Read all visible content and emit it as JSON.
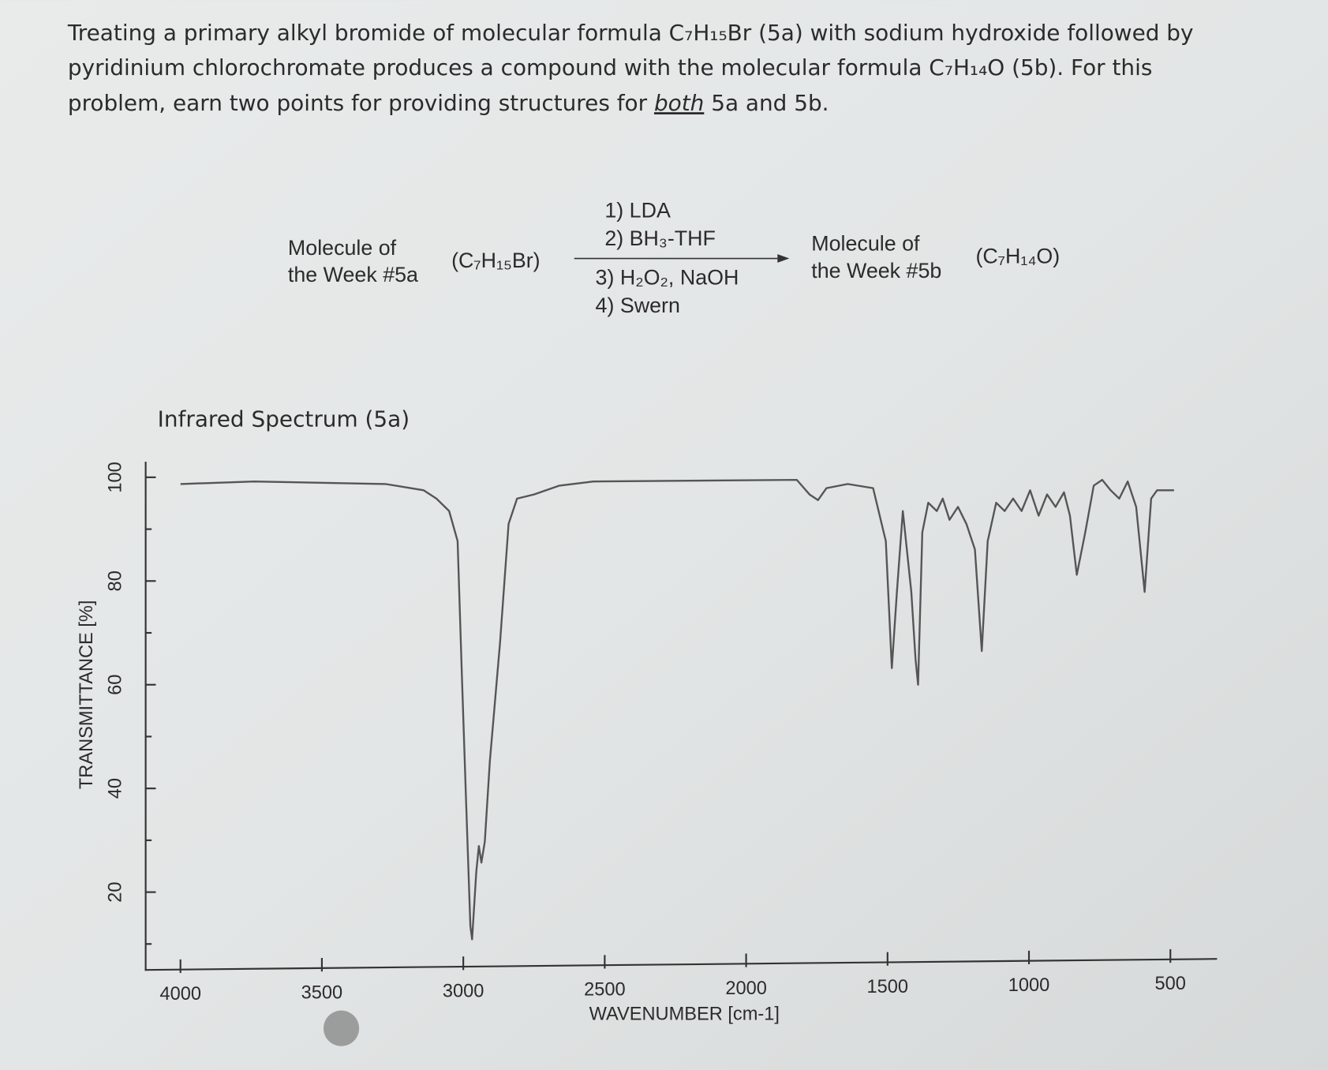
{
  "question": {
    "lines": [
      "Treating a primary alkyl bromide of molecular formula C₇H₁₅Br (5a) with sodium hydroxide followed by",
      "pyridinium chlorochromate produces a compound with the molecular formula C₇H₁₄O (5b). For this"
    ],
    "last_line": [
      "problem, earn two points for providing structures for ",
      "both",
      " 5a and 5b."
    ]
  },
  "scheme": {
    "start_name": [
      "Molecule of",
      "the Week #5a"
    ],
    "start_formula": "(C₇H₁₅Br)",
    "reagents_above": [
      "1) LDA",
      "2) BH₃-THF"
    ],
    "reagents_below": [
      "3) H₂O₂, NaOH",
      "4) Swern"
    ],
    "product_name": [
      "Molecule of",
      "the Week #5b"
    ],
    "product_formula": "(C₇H₁₄O)"
  },
  "chart_data": {
    "type": "line",
    "title": "Infrared Spectrum (5a)",
    "x_label": "WAVENUMBER [cm-1]",
    "y_label": "TRANSMITTANCE [%]",
    "xlim": [
      4123,
      335
    ],
    "ylim": [
      5,
      103
    ],
    "xticks": [
      4000,
      3500,
      3000,
      2500,
      2000,
      1500,
      1000,
      500
    ],
    "yticks": [
      20,
      40,
      60,
      80,
      100
    ],
    "yticks_minor": [
      10,
      30,
      50,
      70,
      90
    ],
    "x": [
      4000,
      3739,
      3275,
      3140,
      3095,
      3050,
      3020,
      3005,
      2990,
      2975,
      2969,
      2954,
      2945,
      2936,
      2924,
      2906,
      2870,
      2840,
      2810,
      2750,
      2660,
      2540,
      1821,
      1776,
      1746,
      1716,
      1641,
      1551,
      1506,
      1485,
      1467,
      1446,
      1416,
      1401,
      1392,
      1377,
      1356,
      1326,
      1305,
      1281,
      1251,
      1221,
      1191,
      1167,
      1146,
      1116,
      1086,
      1056,
      1026,
      996,
      966,
      936,
      906,
      876,
      855,
      831,
      801,
      771,
      741,
      711,
      681,
      651,
      621,
      591,
      568,
      547,
      487
    ],
    "series": [
      {
        "color": "#555555",
        "values": [
          98.7,
          99.2,
          98.7,
          97.5,
          95.9,
          93.5,
          87.7,
          61.6,
          37.1,
          13.4,
          10.9,
          24.0,
          28.9,
          25.7,
          29.7,
          45.3,
          68.1,
          91.0,
          95.9,
          96.7,
          98.4,
          99.2,
          99.5,
          96.7,
          95.6,
          97.9,
          98.7,
          97.9,
          87.7,
          63.2,
          77.9,
          93.5,
          77.9,
          64.9,
          60.0,
          89.4,
          95.1,
          93.5,
          95.9,
          91.8,
          94.3,
          91.0,
          86.1,
          66.5,
          87.7,
          95.1,
          93.5,
          95.9,
          93.5,
          97.5,
          92.6,
          96.7,
          94.3,
          97.1,
          92.6,
          81.2,
          89.4,
          98.4,
          99.5,
          97.5,
          95.9,
          99.2,
          94.3,
          77.9,
          95.9,
          97.5,
          97.5
        ]
      }
    ]
  }
}
